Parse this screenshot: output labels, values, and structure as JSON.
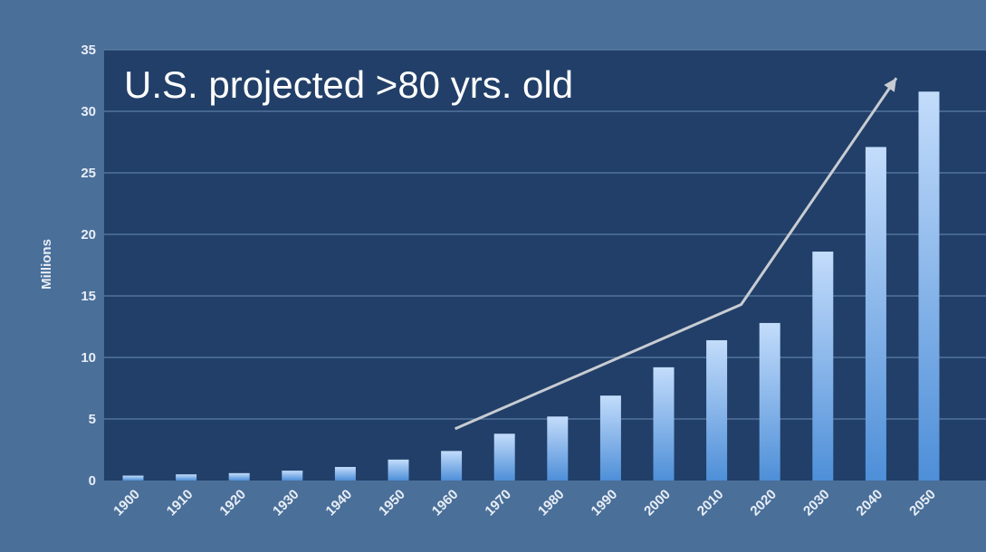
{
  "chart_data": {
    "type": "bar",
    "title": "U.S. projected >80 yrs. old",
    "xlabel": "",
    "ylabel": "Millions",
    "ylim": [
      0,
      35
    ],
    "yticks": [
      "0",
      "5",
      "10",
      "15",
      "20",
      "25",
      "30",
      "35"
    ],
    "grid": true,
    "legend": "none",
    "categories": [
      "1900",
      "1910",
      "1920",
      "1930",
      "1940",
      "1950",
      "1960",
      "1970",
      "1980",
      "1990",
      "2000",
      "2010",
      "2020",
      "2030",
      "2040",
      "2050"
    ],
    "values": [
      0.4,
      0.5,
      0.6,
      0.8,
      1.1,
      1.7,
      2.4,
      3.8,
      5.2,
      6.9,
      9.2,
      11.4,
      12.8,
      18.6,
      27.1,
      31.6
    ],
    "trend_arrow": {
      "points": [
        {
          "x": "1960",
          "y": 4.2
        },
        {
          "x": "2010",
          "y": 14.3
        },
        {
          "x": "2050",
          "y": 32.7
        }
      ]
    },
    "colors": {
      "frame": "#4a6f99",
      "plot_background": "#213f68",
      "gridline": "#5b7ea6",
      "bar_top": "#c3dcfb",
      "bar_bottom": "#4e8fd8",
      "arrow": "#c8ccd2",
      "text": "#e8eef6",
      "title": "#ffffff"
    }
  }
}
